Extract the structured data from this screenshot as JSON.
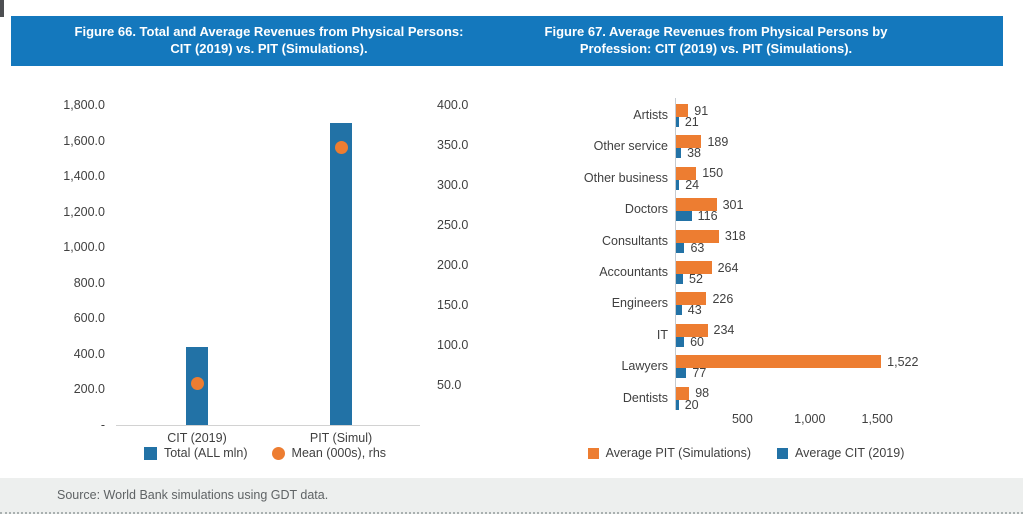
{
  "banner": {
    "fig66_title_line1": "Figure 66. Total and Average Revenues from Physical Persons:",
    "fig66_title_line2": "CIT (2019) vs. PIT (Simulations).",
    "fig67_title_line1": "Figure 67. Average Revenues from Physical Persons by",
    "fig67_title_line2": "Profession: CIT (2019) vs. PIT (Simulations)."
  },
  "source_note": "Source: World Bank simulations using GDT data.",
  "colors": {
    "banner_blue": "#1478bd",
    "bar_blue": "#2272a6",
    "bar_orange": "#ed7d31",
    "axis_text": "#404040",
    "axis_line": "#d2d2d2",
    "source_bg": "#edefee",
    "source_text": "#5f6365"
  },
  "chart_data": [
    {
      "figure": "Figure 66",
      "type": "bar",
      "title": "Total and Average Revenues from Physical Persons: CIT (2019) vs. PIT (Simulations).",
      "categories": [
        "CIT (2019)",
        "PIT (Simul)"
      ],
      "series": [
        {
          "name": "Total (ALL mln)",
          "chart_type": "bar",
          "axis": "left",
          "values": [
            440,
            1700
          ],
          "color": "#2272a6"
        },
        {
          "name": "Mean (000s), rhs",
          "chart_type": "scatter",
          "axis": "right",
          "values": [
            52,
            347
          ],
          "color": "#ed7d31"
        }
      ],
      "left_axis": {
        "min": 0,
        "max": 1800,
        "tick_labels": [
          "1,800.0",
          "1,600.0",
          "1,400.0",
          "1,200.0",
          "1,000.0",
          "800.0",
          "600.0",
          "400.0",
          "200.0",
          "-"
        ],
        "tick_values": [
          1800,
          1600,
          1400,
          1200,
          1000,
          800,
          600,
          400,
          200,
          0
        ]
      },
      "right_axis": {
        "min": 0,
        "max": 400,
        "tick_labels": [
          "400.0",
          "350.0",
          "300.0",
          "250.0",
          "200.0",
          "150.0",
          "100.0",
          "50.0"
        ],
        "tick_values": [
          400,
          350,
          300,
          250,
          200,
          150,
          100,
          50
        ]
      },
      "legend_position": "bottom",
      "grid": false
    },
    {
      "figure": "Figure 67",
      "type": "bar",
      "orientation": "horizontal",
      "title": "Average Revenues from Physical Persons by Profession: CIT (2019) vs. PIT (Simulations).",
      "categories": [
        "Artists",
        "Other service",
        "Other business",
        "Doctors",
        "Consultants",
        "Accountants",
        "Engineers",
        "IT",
        "Lawyers",
        "Dentists"
      ],
      "series": [
        {
          "name": "Average PIT (Simulations)",
          "values": [
            91,
            189,
            150,
            301,
            318,
            264,
            226,
            234,
            1522,
            98
          ],
          "value_labels": [
            "91",
            "189",
            "150",
            "301",
            "318",
            "264",
            "226",
            "234",
            "1,522",
            "98"
          ],
          "color": "#ed7d31"
        },
        {
          "name": "Average CIT (2019)",
          "values": [
            21,
            38,
            24,
            116,
            63,
            52,
            43,
            60,
            77,
            20
          ],
          "value_labels": [
            "21",
            "38",
            "24",
            "116",
            "63",
            "52",
            "43",
            "60",
            "77",
            "20"
          ],
          "color": "#2272a6"
        }
      ],
      "x_axis": {
        "min": 0,
        "tick_labels": [
          "500",
          "1,000",
          "1,500"
        ],
        "tick_values": [
          500,
          1000,
          1500
        ]
      },
      "legend_position": "bottom",
      "grid": false
    }
  ]
}
